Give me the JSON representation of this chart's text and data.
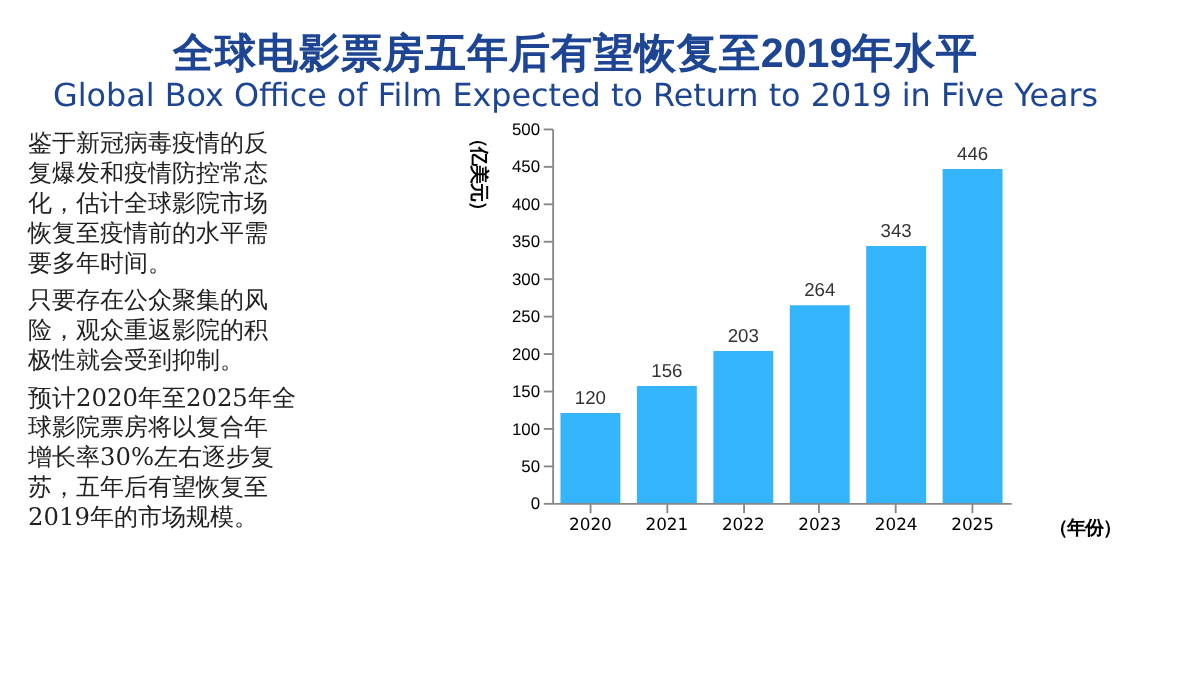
{
  "chart_data": {
    "type": "bar",
    "title": "全球电影票房五年后有望恢复至2019年水平",
    "subtitle": "Global Box Office of Film Expected to Return to 2019 in Five Years",
    "xlabel": "（年份）",
    "ylabel": "（亿美元）",
    "annotations": [
      "鉴于新冠病毒疫情的反复爆发和疫情防控常态化，估计全球影院市场恢复至疫情前的水平需要多年时间。",
      "只要存在公众聚集的风险，观众重返影院的积极性就会受到抑制。",
      "预计2020年至2025年全球影院票房将以复合年增长率30%左右逐步复苏，五年后有望恢复至2019年的市场规模。"
    ],
    "categories": [
      "2020",
      "2021",
      "2022",
      "2023",
      "2024",
      "2025"
    ],
    "values": [
      120,
      156,
      203,
      264,
      343,
      446
    ],
    "color": "#33b4fb",
    "ylim": [
      0,
      500
    ],
    "yticks": [
      0,
      50,
      100,
      150,
      200,
      250,
      300,
      350,
      400,
      450,
      500
    ],
    "data_labels": true,
    "grid": false
  }
}
